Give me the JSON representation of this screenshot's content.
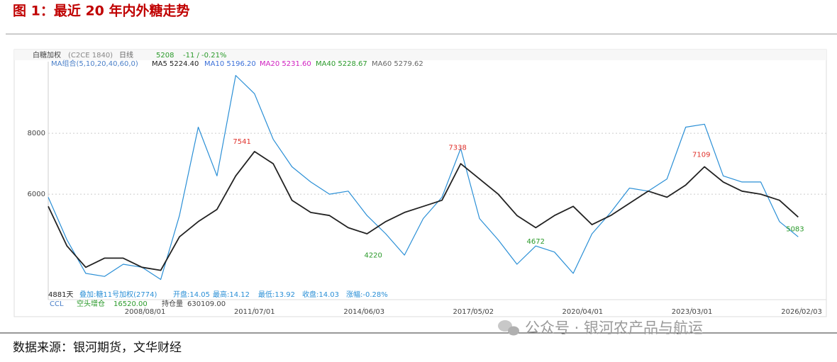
{
  "figure_title": "图 1：最近 20 年内外糖走势",
  "source": "数据来源：银河期货，文华财经",
  "watermark": "公众号 · 银河农产品与航运",
  "chart_data": {
    "type": "line",
    "header": {
      "contract": "(C2CE 1840)",
      "period": "日线",
      "last": "5208",
      "change": "-11 / -0.21%",
      "ma_group": "MA组合(5,10,20,40,60,0)",
      "ma5": "MA5 5224.40",
      "ma10": "MA10 5196.20",
      "ma20": "MA20 5231.60",
      "ma40": "MA40 5228.67",
      "ma60": "MA60 5279.62"
    },
    "footer": {
      "days": "4881天",
      "open": "开盘:14.05",
      "high": "最高:14.12",
      "low": "最低:13.92",
      "close": "收盘:14.03",
      "pct": "涨幅:-0.28%",
      "ccl": "CCL",
      "ccl_kind": "空头增仓",
      "ccl_value": "16520.00",
      "oi_label": "持仓量",
      "oi_value": "630109.00"
    },
    "x": [
      "2006/01/01",
      "2006/07/01",
      "2007/01/01",
      "2007/07/01",
      "2008/01/01",
      "2008/07/01",
      "2009/01/01",
      "2009/07/01",
      "2010/01/01",
      "2010/07/01",
      "2011/01/01",
      "2011/07/01",
      "2012/01/01",
      "2012/07/01",
      "2013/01/01",
      "2013/07/01",
      "2014/01/01",
      "2014/07/01",
      "2015/01/01",
      "2015/07/01",
      "2016/01/01",
      "2016/07/01",
      "2017/01/01",
      "2017/07/01",
      "2018/01/01",
      "2018/07/01",
      "2019/01/01",
      "2019/07/01",
      "2020/01/01",
      "2020/07/01",
      "2021/01/01",
      "2021/07/01",
      "2022/01/01",
      "2022/07/01",
      "2023/01/01",
      "2023/07/01",
      "2024/01/01",
      "2024/07/01",
      "2025/01/01",
      "2025/07/01",
      "2026/01/01"
    ],
    "series": [
      {
        "name": "白糖加权",
        "color": "#222222",
        "values": [
          5600,
          4300,
          3600,
          3900,
          3900,
          3600,
          3500,
          4600,
          5100,
          5500,
          6600,
          7400,
          7000,
          5800,
          5400,
          5300,
          4900,
          4700,
          5100,
          5400,
          5600,
          5800,
          7000,
          6500,
          6000,
          5300,
          4900,
          5300,
          5600,
          5000,
          5300,
          5700,
          6100,
          5900,
          6300,
          6900,
          6400,
          6100,
          6000,
          5800,
          5250
        ]
      },
      {
        "name": "叠加:糖11号加权(2774)",
        "color": "#2a8fd6",
        "values": [
          5900,
          4500,
          3400,
          3300,
          3700,
          3600,
          3200,
          5300,
          8200,
          6600,
          9900,
          9300,
          7800,
          6900,
          6400,
          6000,
          6100,
          5300,
          4700,
          4000,
          5200,
          5900,
          7500,
          5200,
          4500,
          3700,
          4300,
          4100,
          3400,
          4700,
          5400,
          6200,
          6100,
          6500,
          8200,
          8300,
          6600,
          6400,
          6400,
          5100,
          4600
        ]
      }
    ],
    "annotations": [
      {
        "x": "2011/03/01",
        "value": 7541,
        "color": "#e0302a"
      },
      {
        "x": "2014/09/01",
        "value": 4220,
        "color": "#2a9a2a"
      },
      {
        "x": "2016/12/01",
        "value": 7338,
        "color": "#e0302a"
      },
      {
        "x": "2019/01/01",
        "value": 4672,
        "color": "#2a9a2a"
      },
      {
        "x": "2023/06/01",
        "value": 7109,
        "color": "#e0302a"
      },
      {
        "x": "2025/12/01",
        "value": 5083,
        "color": "#2a9a2a"
      }
    ],
    "xlim": [
      "2006/01/01",
      "2026/10/01"
    ],
    "xticks": [
      "2008/08/01",
      "2011/07/01",
      "2014/06/03",
      "2017/05/02",
      "2020/04/01",
      "2023/03/01",
      "2026/02/03"
    ],
    "ylim": [
      2840,
      10120
    ],
    "yticks": [
      6000,
      8000
    ],
    "grid": true
  }
}
